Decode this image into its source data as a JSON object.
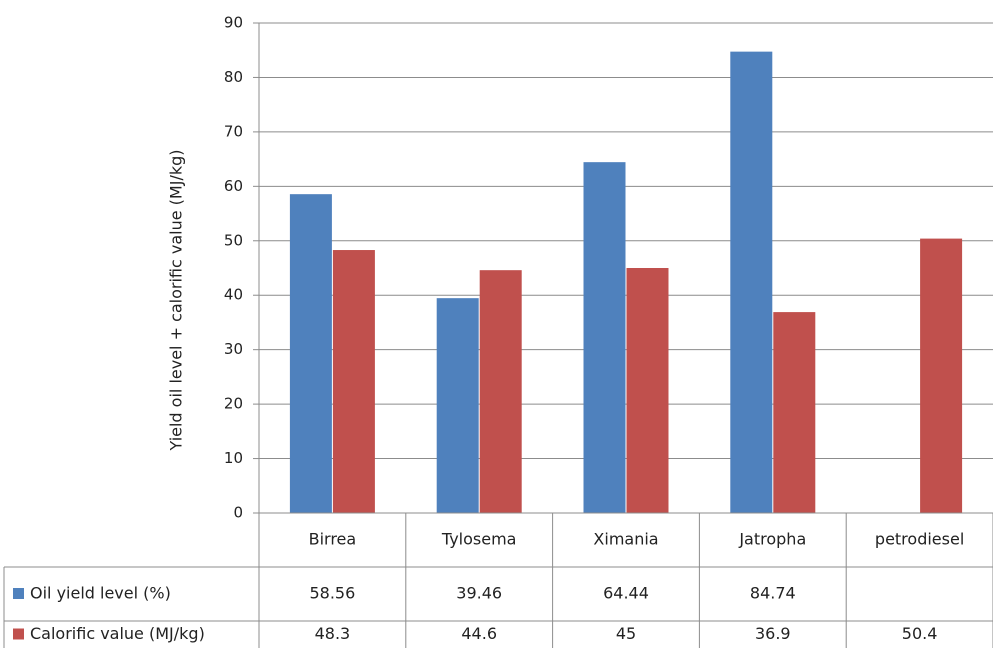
{
  "chart_data": {
    "type": "bar",
    "categories": [
      "Birrea",
      "Tylosema",
      "Ximania",
      "Jatropha",
      "petrodiesel"
    ],
    "series": [
      {
        "name": "Oil yield level (%)",
        "color": "#4f81bd",
        "values": [
          58.56,
          39.46,
          64.44,
          84.74,
          null
        ],
        "table_values": [
          "58.56",
          "39.46",
          "64.44",
          "84.74",
          ""
        ]
      },
      {
        "name": "Calorific value (MJ/kg)",
        "color": "#c0504d",
        "values": [
          48.3,
          44.6,
          45,
          36.9,
          50.4
        ],
        "table_values": [
          "48.3",
          "44.6",
          "45",
          "36.9",
          "50.4"
        ]
      }
    ],
    "ylabel": "Yield oil level + calorific value (MJ/kg)",
    "ylim": [
      0,
      90
    ],
    "yticks": [
      0,
      10,
      20,
      30,
      40,
      50,
      60,
      70,
      80,
      90
    ],
    "grid": true,
    "legend": "data table"
  }
}
